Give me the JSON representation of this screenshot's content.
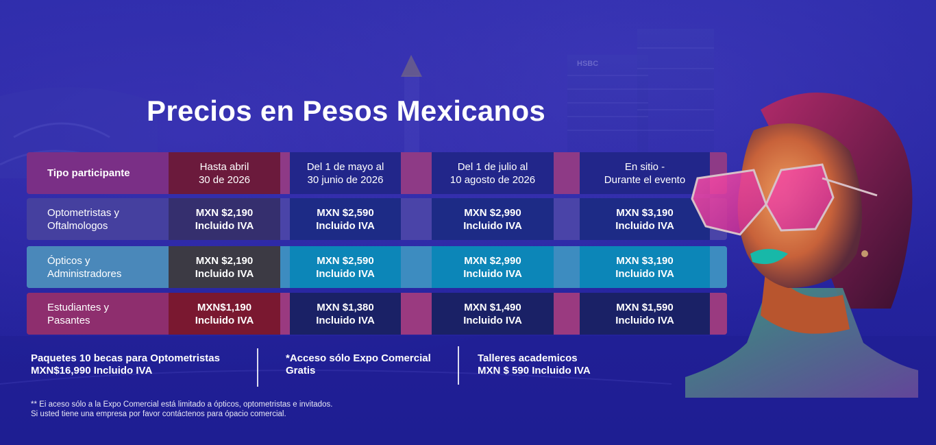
{
  "title": "Precios en Pesos Mexicanos",
  "table": {
    "header": {
      "col0": "Tipo participante",
      "col1": [
        "Hasta abril",
        "30 de 2026"
      ],
      "col2": [
        "Del 1 de mayo al",
        "30 junio de 2026"
      ],
      "col3": [
        "Del 1 de julio al",
        "10 agosto de 2026"
      ],
      "col4": [
        "En sitio -",
        "Durante el evento"
      ]
    },
    "rows": [
      {
        "label": [
          "Optometristas y",
          "Oftalmologos"
        ],
        "prices": [
          [
            "MXN $2,190",
            "Incluido IVA"
          ],
          [
            "MXN $2,590",
            "Incluido IVA"
          ],
          [
            "MXN $2,990",
            "Incluido IVA"
          ],
          [
            "MXN $3,190",
            "Incluido IVA"
          ]
        ]
      },
      {
        "label": [
          "Ópticos y",
          "Administradores"
        ],
        "prices": [
          [
            "MXN $2,190",
            "Incluido IVA"
          ],
          [
            "MXN $2,590",
            "Incluido IVA"
          ],
          [
            "MXN $2,990",
            "Incluido IVA"
          ],
          [
            "MXN $3,190",
            "Incluido IVA"
          ]
        ]
      },
      {
        "label": [
          "Estudiantes y",
          "Pasantes"
        ],
        "prices": [
          [
            "MXN$1,190",
            "Incluido IVA"
          ],
          [
            "MXN $1,380",
            "Incluido IVA"
          ],
          [
            "MXN $1,490",
            "Incluido IVA"
          ],
          [
            "MXN $1,590",
            "Incluido IVA"
          ]
        ]
      }
    ]
  },
  "info": [
    [
      "Paquetes 10 becas para Optometristas",
      "MXN$16,990 Incluido IVA"
    ],
    [
      "*Acceso sólo Expo Comercial",
      "Gratis"
    ],
    [
      "Talleres academicos",
      "MXN $ 590 Incluido IVA"
    ]
  ],
  "footnote": [
    "** Ei aceso sólo a la Expo Comercial está limitado a ópticos, optometristas e invitados.",
    "Si usted tiene una empresa por favor contáctenos para ópacio comercial."
  ],
  "building_sign": "HSBC",
  "colors": {
    "background": "#2624a0",
    "header_purple": "#7a2f86",
    "row_purple": "#3e3a9e",
    "row_teal": "#3f86b8",
    "row_magenta": "#8a2c6c",
    "dark_red": "#6b1a3c",
    "cell_darkblue": "#1d2b86",
    "cell_teal": "#0c86b8",
    "cell_navy": "#1a2166",
    "gap_magenta": "#8e3a86"
  }
}
